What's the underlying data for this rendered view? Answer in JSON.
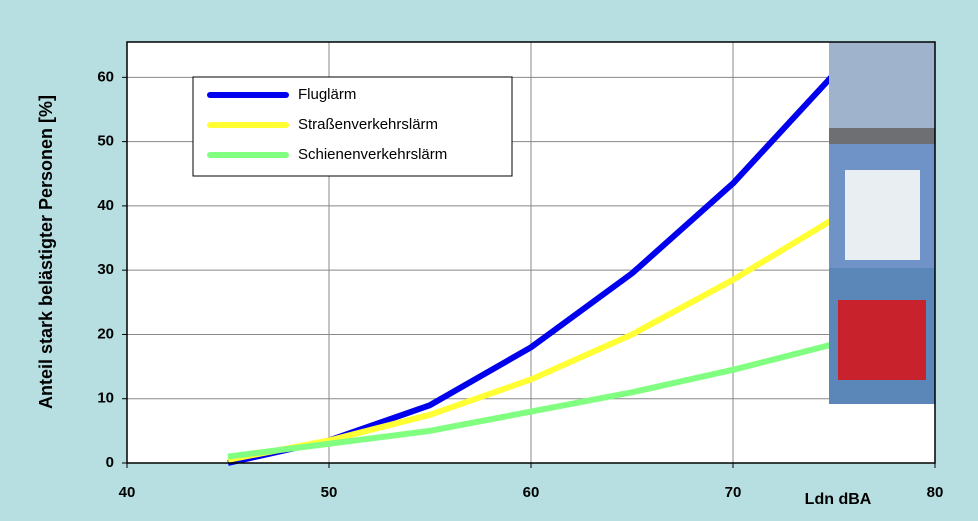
{
  "chart_data": {
    "type": "line",
    "xlabel": "Ldn dBA",
    "ylabel": "Anteil stark belästigter Personen [%]",
    "xlim": [
      40,
      80
    ],
    "xticks": [
      40,
      50,
      60,
      70,
      80
    ],
    "ylim": [
      0,
      65.5
    ],
    "yticks": [
      0,
      10,
      20,
      30,
      40,
      50,
      60
    ],
    "grid": true,
    "legend": "upper left",
    "x": [
      45,
      50,
      55,
      60,
      65,
      70,
      75
    ],
    "series": [
      {
        "name": "Fluglärm",
        "color": "#0000ee",
        "values": [
          0,
          3.5,
          9,
          18,
          29.5,
          43.5,
          60.5
        ]
      },
      {
        "name": "Straßenverkehrslärm",
        "color": "#ffff33",
        "values": [
          0.5,
          3.5,
          7.5,
          13,
          20,
          28.5,
          38
        ]
      },
      {
        "name": "Schienenverkehrslärm",
        "color": "#80ff80",
        "values": [
          1,
          3,
          5,
          8,
          11,
          14.5,
          18.5
        ]
      }
    ]
  }
}
